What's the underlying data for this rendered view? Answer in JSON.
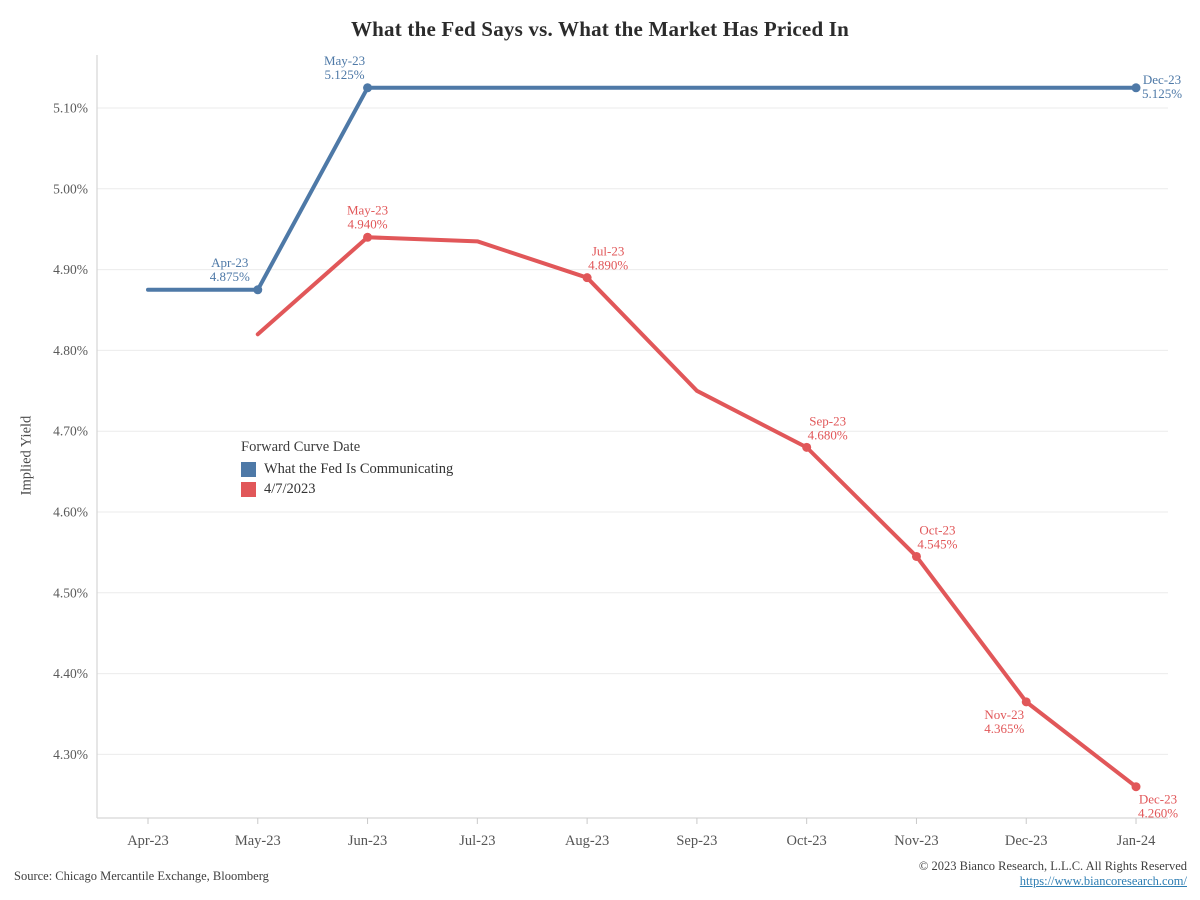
{
  "title": "What the Fed Says vs. What the Market Has Priced In",
  "chart_data": {
    "type": "line",
    "title": "What the Fed Says vs. What the Market Has Priced In",
    "xlabel": "",
    "ylabel": "Implied Yield",
    "x_categories": [
      "Apr-23",
      "May-23",
      "Jun-23",
      "Jul-23",
      "Aug-23",
      "Sep-23",
      "Oct-23",
      "Nov-23",
      "Dec-23",
      "Jan-24"
    ],
    "y_axis": {
      "range": [
        4.22,
        5.16
      ],
      "ticks": [
        4.3,
        4.4,
        4.5,
        4.6,
        4.7,
        4.8,
        4.9,
        5.0,
        5.1
      ],
      "tick_labels": [
        "4.30%",
        "4.40%",
        "4.50%",
        "4.60%",
        "4.70%",
        "4.80%",
        "4.90%",
        "5.00%",
        "5.10%"
      ]
    },
    "grid": true,
    "legend": {
      "title": "Forward Curve Date",
      "position": "inside-left",
      "entries": [
        {
          "label": "What the Fed Is Communicating",
          "color": "#4E79A7"
        },
        {
          "label": "4/7/2023",
          "color": "#E15759"
        }
      ]
    },
    "series": [
      {
        "name": "What the Fed Is Communicating",
        "color": "#4E79A7",
        "points": [
          {
            "x": "Apr-23",
            "y": 4.875
          },
          {
            "x": "May-23",
            "y": 4.875,
            "marker": true
          },
          {
            "x": "Jun-23",
            "y": 5.125,
            "marker": true
          },
          {
            "x": "Jul-23",
            "y": 5.125
          },
          {
            "x": "Aug-23",
            "y": 5.125
          },
          {
            "x": "Sep-23",
            "y": 5.125
          },
          {
            "x": "Oct-23",
            "y": 5.125
          },
          {
            "x": "Nov-23",
            "y": 5.125
          },
          {
            "x": "Dec-23",
            "y": 5.125
          },
          {
            "x": "Jan-24",
            "y": 5.125,
            "marker": true
          }
        ],
        "annotations": [
          {
            "x": "May-23",
            "lines": [
              "Apr-23",
              "4.875%"
            ],
            "dx": -28,
            "dy": -23
          },
          {
            "x": "Jun-23",
            "lines": [
              "May-23",
              "5.125%"
            ],
            "dx": -23,
            "dy": -23
          },
          {
            "x": "Jan-24",
            "lines": [
              "Dec-23",
              "5.125%"
            ],
            "dx": 26,
            "dy": -4
          }
        ]
      },
      {
        "name": "4/7/2023",
        "color": "#E15759",
        "points": [
          {
            "x": "May-23",
            "y": 4.82
          },
          {
            "x": "Jun-23",
            "y": 4.94,
            "marker": true
          },
          {
            "x": "Jul-23",
            "y": 4.935
          },
          {
            "x": "Aug-23",
            "y": 4.89,
            "marker": true
          },
          {
            "x": "Sep-23",
            "y": 4.75
          },
          {
            "x": "Oct-23",
            "y": 4.68,
            "marker": true
          },
          {
            "x": "Nov-23",
            "y": 4.545,
            "marker": true
          },
          {
            "x": "Dec-23",
            "y": 4.365,
            "marker": true
          },
          {
            "x": "Jan-24",
            "y": 4.26,
            "marker": true
          }
        ],
        "annotations": [
          {
            "x": "Jun-23",
            "lines": [
              "May-23",
              "4.940%"
            ],
            "dx": 0,
            "dy": -23
          },
          {
            "x": "Aug-23",
            "lines": [
              "Jul-23",
              "4.890%"
            ],
            "dx": 21,
            "dy": -22
          },
          {
            "x": "Oct-23",
            "lines": [
              "Sep-23",
              "4.680%"
            ],
            "dx": 21,
            "dy": -22
          },
          {
            "x": "Nov-23",
            "lines": [
              "Oct-23",
              "4.545%"
            ],
            "dx": 21,
            "dy": -22
          },
          {
            "x": "Dec-23",
            "lines": [
              "Nov-23",
              "4.365%"
            ],
            "dx": -22,
            "dy": 17
          },
          {
            "x": "Jan-24",
            "lines": [
              "Dec-23",
              "4.260%"
            ],
            "dx": 22,
            "dy": 17
          }
        ]
      }
    ]
  },
  "footer": {
    "source": "Source: Chicago Mercantile Exchange, Bloomberg",
    "copyright": "© 2023 Bianco Research, L.L.C. All Rights Reserved",
    "link": "https://www.biancoresearch.com/"
  },
  "colors": {
    "fed_blue": "#4E79A7",
    "market_red": "#E15759",
    "link_blue": "#2E7EB3",
    "gridline": "#EBEBEB",
    "axis": "#D8D8D8"
  }
}
